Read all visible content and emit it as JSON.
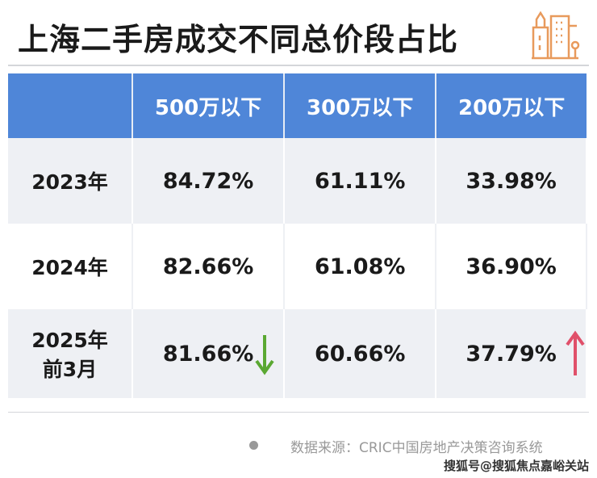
{
  "title": "上海二手房成交不同总价段占比",
  "icon": "building-icon",
  "colors": {
    "header": "#4f86d8",
    "logo": "#e89a5c",
    "down": "#5aa832",
    "up": "#e0506a"
  },
  "table": {
    "headers": [
      "",
      "500万以下",
      "300万以下",
      "200万以下"
    ],
    "rows": [
      {
        "label": "2023年",
        "values": [
          "84.72%",
          "61.11%",
          "33.98%"
        ]
      },
      {
        "label": "2024年",
        "values": [
          "82.66%",
          "61.08%",
          "36.90%"
        ]
      },
      {
        "label": "2025年",
        "sublabel": "前3月",
        "values": [
          "81.66%",
          "60.66%",
          "37.79%"
        ],
        "arrows": [
          "down",
          "",
          "up"
        ]
      }
    ]
  },
  "source": "数据来源：CRIC中国房地产决策咨询系统",
  "watermark": "搜狐号@搜狐焦点嘉峪关站"
}
